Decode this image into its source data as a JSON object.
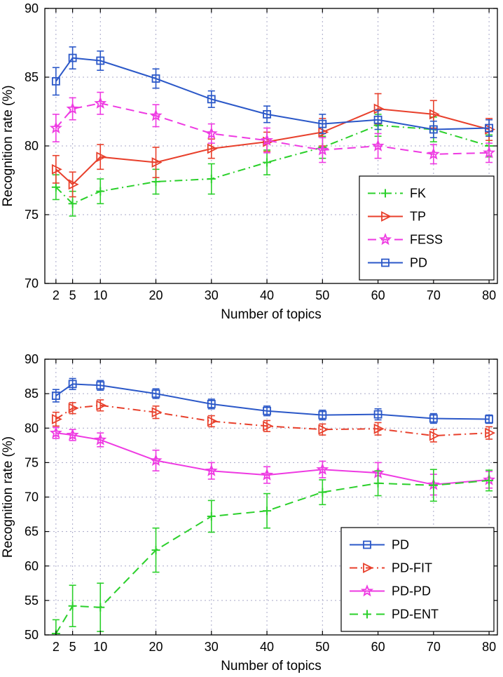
{
  "page": {
    "background": "#ffffff",
    "grid_color": "#a8a8c8",
    "axis_color": "#000000"
  },
  "chart_data": [
    {
      "type": "line",
      "title": "",
      "xlabel": "Number of topics",
      "ylabel": "Recognition rate (%)",
      "x": [
        2,
        5,
        10,
        20,
        30,
        40,
        50,
        60,
        70,
        80
      ],
      "xticks": [
        2,
        5,
        10,
        20,
        30,
        40,
        50,
        60,
        70,
        80
      ],
      "xlim": [
        0,
        81.5
      ],
      "ylim": [
        70,
        90
      ],
      "yticks": [
        70,
        75,
        80,
        85,
        90
      ],
      "grid": true,
      "legend_position": "bottom-right",
      "series": [
        {
          "name": "FK",
          "color": "#2bd02b",
          "linestyle": "dashdot",
          "marker": "plus",
          "values": [
            77.0,
            75.8,
            76.7,
            77.4,
            77.6,
            78.8,
            79.9,
            81.5,
            81.2,
            80.0
          ],
          "errors": [
            0.9,
            0.9,
            0.9,
            0.9,
            1.1,
            0.9,
            0.8,
            0.8,
            0.9,
            0.8
          ]
        },
        {
          "name": "TP",
          "color": "#e8402c",
          "linestyle": "solid",
          "marker": "triangle-right",
          "values": [
            78.3,
            77.2,
            79.2,
            78.8,
            79.8,
            80.3,
            81.0,
            82.7,
            82.3,
            81.2
          ],
          "errors": [
            1.0,
            0.9,
            0.9,
            1.1,
            0.7,
            0.7,
            1.0,
            1.1,
            1.0,
            0.8
          ]
        },
        {
          "name": "FESS",
          "color": "#ee3ae2",
          "linestyle": "dashed",
          "marker": "star",
          "values": [
            81.3,
            82.7,
            83.1,
            82.2,
            80.9,
            80.4,
            79.7,
            80.0,
            79.4,
            79.5
          ],
          "errors": [
            1.0,
            0.8,
            0.8,
            0.8,
            0.7,
            0.9,
            0.9,
            0.9,
            0.7,
            0.7
          ]
        },
        {
          "name": "PD",
          "color": "#2b58c8",
          "linestyle": "solid",
          "marker": "square",
          "values": [
            84.7,
            86.4,
            86.2,
            84.9,
            83.4,
            82.3,
            81.6,
            81.9,
            81.2,
            81.3
          ],
          "errors": [
            1.0,
            0.8,
            0.7,
            0.7,
            0.6,
            0.6,
            0.7,
            0.7,
            0.6,
            0.6
          ]
        }
      ]
    },
    {
      "type": "line",
      "title": "",
      "xlabel": "Number of topics",
      "ylabel": "Recognition rate (%)",
      "x": [
        2,
        5,
        10,
        20,
        30,
        40,
        50,
        60,
        70,
        80
      ],
      "xticks": [
        2,
        5,
        10,
        20,
        30,
        40,
        50,
        60,
        70,
        80
      ],
      "xlim": [
        0,
        81.5
      ],
      "ylim": [
        50,
        90
      ],
      "yticks": [
        50,
        55,
        60,
        65,
        70,
        75,
        80,
        85,
        90
      ],
      "grid": true,
      "legend_position": "bottom-right",
      "series": [
        {
          "name": "PD",
          "color": "#2b58c8",
          "linestyle": "solid",
          "marker": "square",
          "values": [
            84.7,
            86.4,
            86.2,
            85.0,
            83.5,
            82.5,
            81.9,
            82.0,
            81.4,
            81.3
          ],
          "errors": [
            0.9,
            0.8,
            0.7,
            0.7,
            0.7,
            0.7,
            0.7,
            0.8,
            0.7,
            0.6
          ]
        },
        {
          "name": "PD-FIT",
          "color": "#e8402c",
          "linestyle": "dashdot",
          "marker": "triangle-right",
          "values": [
            81.3,
            82.9,
            83.3,
            82.3,
            81.0,
            80.3,
            79.8,
            79.9,
            78.9,
            79.3
          ],
          "errors": [
            1.0,
            0.8,
            0.8,
            0.9,
            0.8,
            0.8,
            0.8,
            0.9,
            0.9,
            0.9
          ]
        },
        {
          "name": "PD-PD",
          "color": "#ee3ae2",
          "linestyle": "solid",
          "marker": "star",
          "values": [
            79.3,
            79.0,
            78.3,
            75.3,
            73.8,
            73.2,
            74.0,
            73.5,
            71.8,
            72.5
          ],
          "errors": [
            0.8,
            0.8,
            1.0,
            1.5,
            1.2,
            1.2,
            1.2,
            1.5,
            1.5,
            1.2
          ]
        },
        {
          "name": "PD-ENT",
          "color": "#2bd02b",
          "linestyle": "dashed",
          "marker": "plus",
          "values": [
            50.2,
            54.2,
            54.0,
            62.3,
            67.2,
            68.0,
            70.7,
            72.0,
            71.7,
            72.4
          ],
          "errors": [
            2.0,
            3.0,
            3.5,
            3.2,
            2.3,
            2.5,
            1.8,
            1.8,
            2.3,
            1.5
          ]
        }
      ]
    }
  ]
}
